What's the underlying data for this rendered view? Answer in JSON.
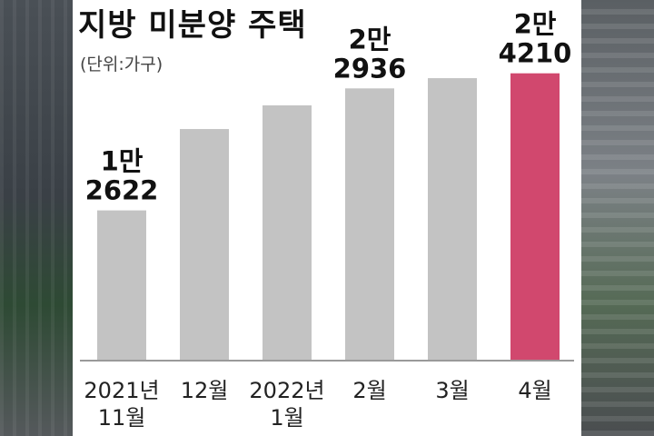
{
  "title": "지방 미분양 주택",
  "unit": "(단위:가구)",
  "chart_data": {
    "type": "bar",
    "categories": [
      [
        "2021년",
        "11월"
      ],
      [
        "12월"
      ],
      [
        "2022년",
        "1월"
      ],
      [
        "2월"
      ],
      [
        "3월"
      ],
      [
        "4월"
      ]
    ],
    "values": [
      12622,
      19500,
      21500,
      22936,
      23800,
      24210
    ],
    "data_labels": [
      [
        "1만",
        "2622"
      ],
      null,
      null,
      [
        "2만",
        "2936"
      ],
      null,
      [
        "2만",
        "4210"
      ]
    ],
    "colors": [
      "#c3c3c3",
      "#c3c3c3",
      "#c3c3c3",
      "#c3c3c3",
      "#c3c3c3",
      "#d1486e"
    ],
    "highlight_color": "#d1486e",
    "bar_color": "#c3c3c3"
  }
}
